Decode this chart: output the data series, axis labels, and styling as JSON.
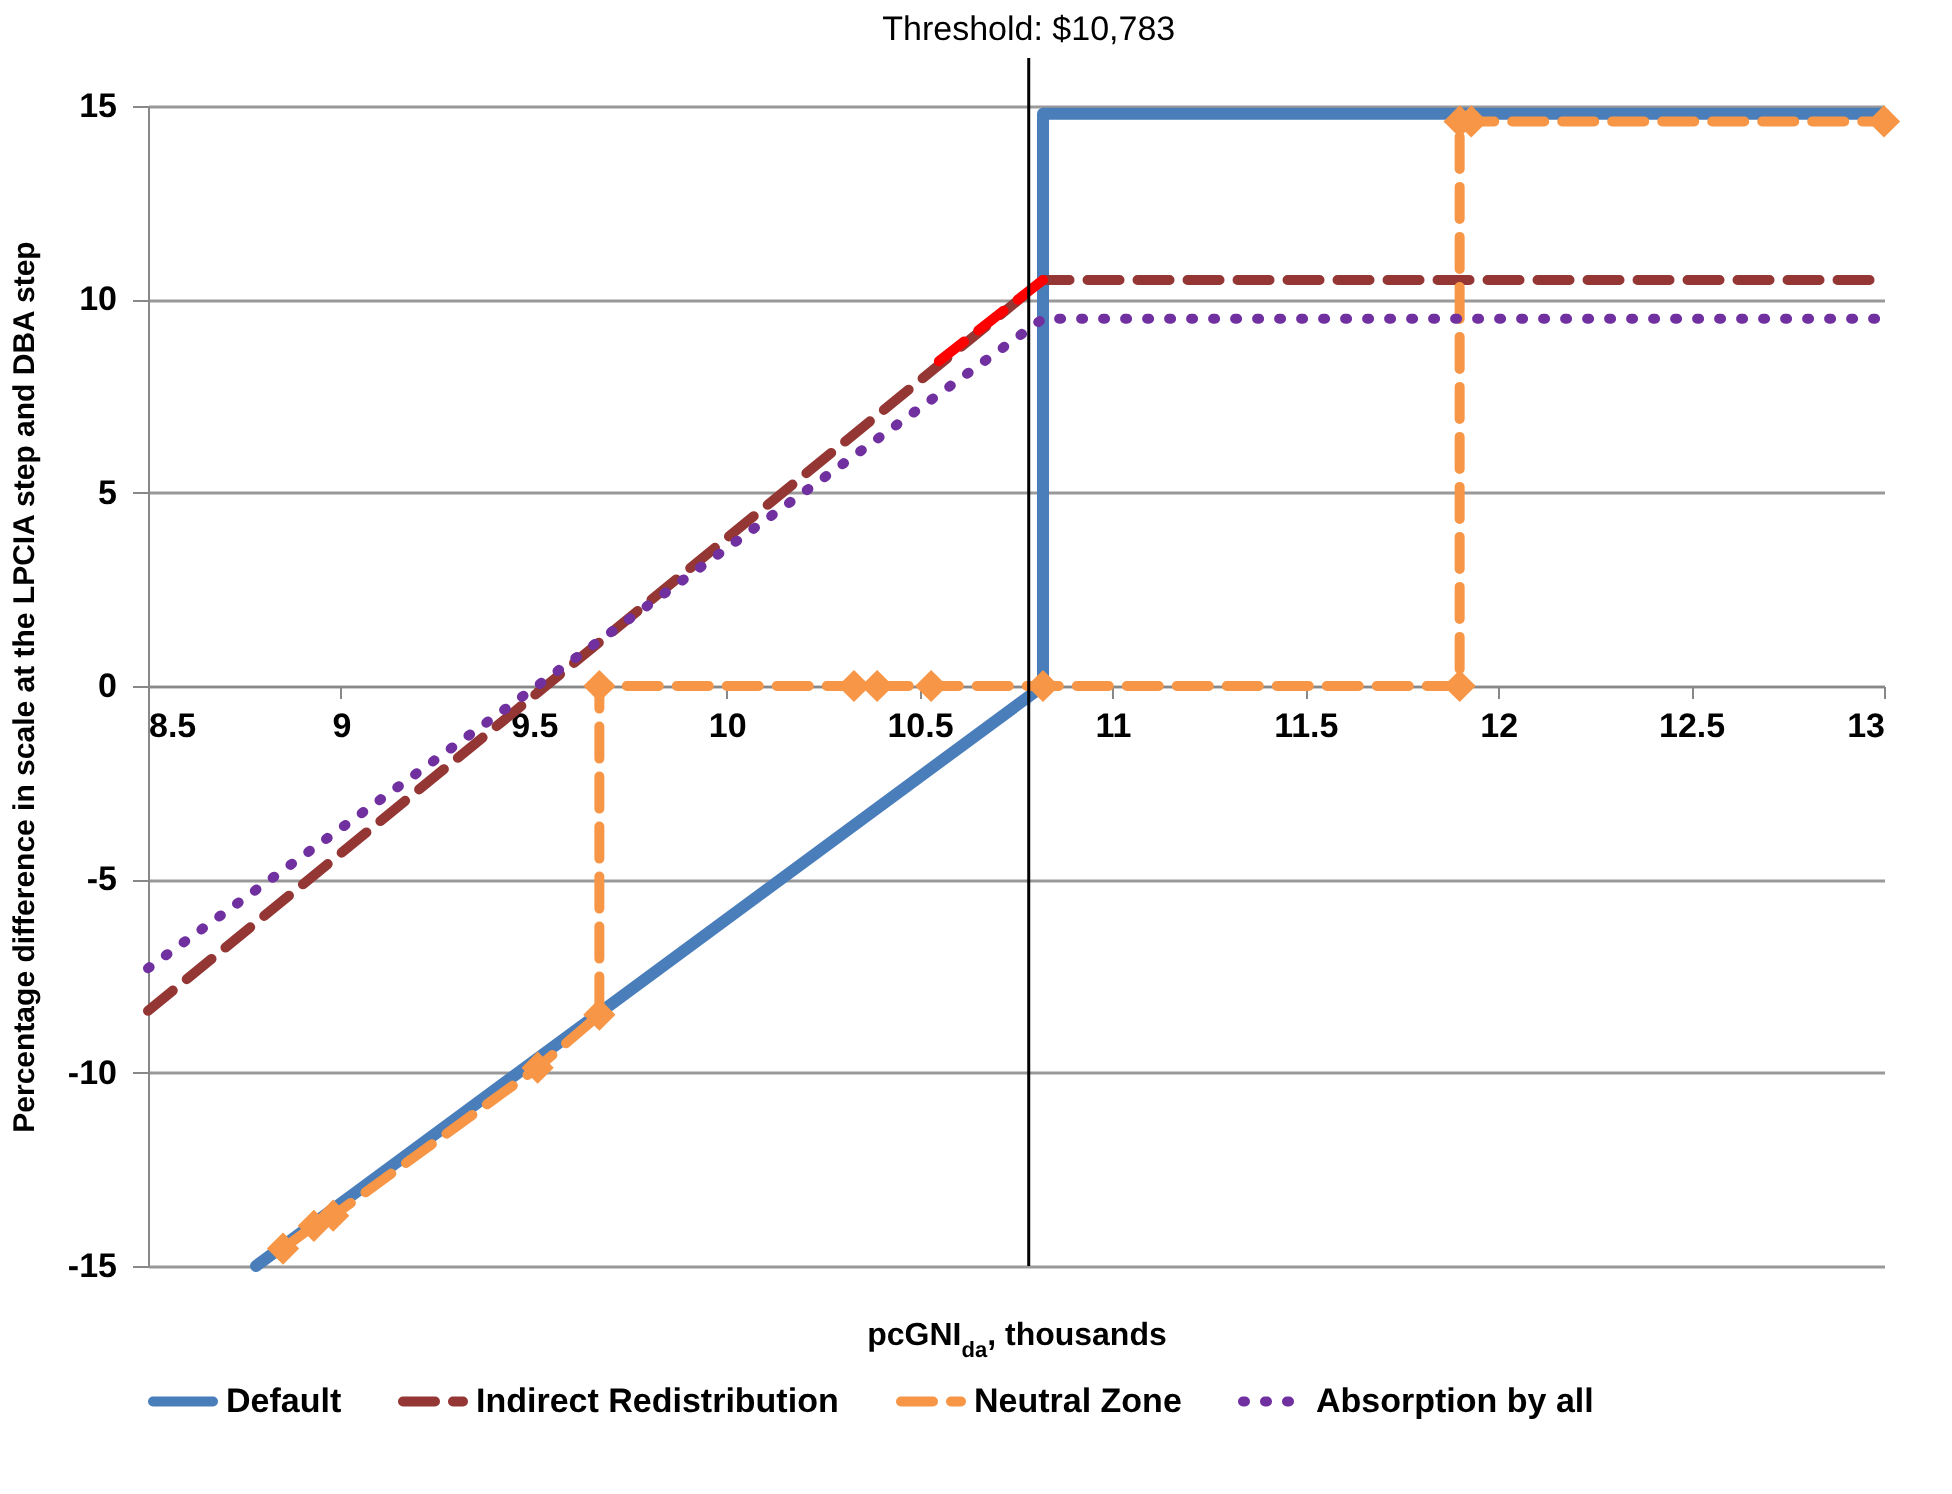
{
  "chart_data": {
    "type": "line",
    "xlabel": "pcGNI$_{da}$, thousands",
    "ylabel": "Percentage difference in scale at the LPCIA step and DBA step",
    "xlim": [
      8.5,
      13
    ],
    "xticks": [
      8.5,
      9,
      9.5,
      10,
      10.5,
      11,
      11.5,
      12,
      12.5,
      13
    ],
    "ylim": [
      -15,
      15
    ],
    "yticks": [
      -15,
      -10,
      -5,
      0,
      5,
      10,
      15
    ],
    "grid": "y",
    "legend": "bottom",
    "series": [
      {
        "name": "Default",
        "color": "#4a7ebb",
        "line_style": "solid",
        "marker": "none",
        "x": [
          8.78,
          10.82,
          10.82,
          13
        ],
        "values": [
          -15,
          0,
          14.8,
          14.8
        ]
      },
      {
        "name": "Indirect Redistribution",
        "color": "#943634",
        "line_style": "dashed",
        "marker": "none",
        "x": [
          8.5,
          10.82,
          13
        ],
        "values": [
          -8.4,
          10.5,
          10.5
        ]
      },
      {
        "color": "#ff0000",
        "line_style": "dashed",
        "marker": "none",
        "x": [
          10.55,
          10.82
        ],
        "values": [
          8.4,
          10.5
        ]
      },
      {
        "name": "Neutral Zone",
        "color": "#f79646",
        "line_style": "dashed",
        "marker": "diamond",
        "x": [
          8.85,
          8.93,
          8.98,
          9.51,
          9.67,
          9.67,
          10.33,
          10.39,
          10.53,
          10.82,
          11.9,
          11.9,
          11.93,
          13
        ],
        "values": [
          -14.55,
          -13.96,
          -13.7,
          -9.87,
          -8.5,
          0,
          0,
          0,
          0,
          0,
          0,
          14.6,
          14.6,
          14.6
        ]
      },
      {
        "name": "Absorption by all",
        "color": "#7030a0",
        "line_style": "dotted",
        "marker": "none",
        "x": [
          8.5,
          10.82,
          13
        ],
        "values": [
          -7.3,
          9.5,
          9.5
        ]
      }
    ],
    "ref_lines": [
      {
        "axis": "x",
        "value": 10.783,
        "label": "Threshold: $10,783",
        "color": "#000000"
      }
    ]
  }
}
